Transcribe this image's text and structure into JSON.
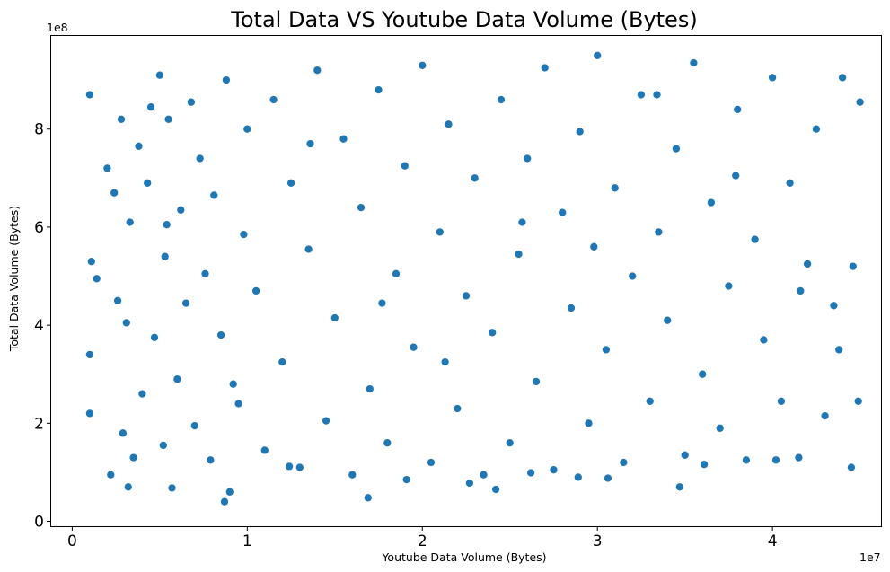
{
  "chart_data": {
    "type": "scatter",
    "title": "Total Data VS Youtube Data Volume (Bytes)",
    "xlabel": "Youtube Data Volume (Bytes)",
    "ylabel": "Total Data Volume (Bytes)",
    "x_offset_label": "1e7",
    "y_offset_label": "1e8",
    "xlim": [
      -1200000,
      46200000
    ],
    "ylim": [
      -10000000,
      990000000
    ],
    "x_ticks": [
      0,
      10000000,
      20000000,
      30000000,
      40000000
    ],
    "x_tick_labels": [
      "0",
      "1",
      "2",
      "3",
      "4"
    ],
    "y_ticks": [
      0,
      200000000,
      400000000,
      600000000,
      800000000
    ],
    "y_tick_labels": [
      "0",
      "2",
      "4",
      "6",
      "8"
    ],
    "grid": false,
    "legend": "none",
    "color": "#1f77b4",
    "series": [
      {
        "x": [
          1000000,
          1100000,
          1000000,
          1000000,
          1400000,
          2000000,
          2200000,
          2600000,
          2800000,
          2900000,
          3100000,
          3200000,
          3300000,
          3500000,
          3800000,
          4000000,
          4300000,
          4500000,
          4700000,
          5000000,
          5200000,
          5300000,
          5500000,
          5700000,
          6000000,
          6200000,
          6500000,
          6800000,
          7000000,
          7300000,
          7600000,
          7900000,
          8100000,
          8500000,
          8800000,
          9000000,
          9500000,
          9800000,
          10000000,
          10500000,
          11000000,
          11500000,
          12000000,
          12500000,
          13000000,
          13500000,
          14000000,
          14500000,
          15000000,
          15500000,
          16000000,
          16500000,
          17000000,
          17500000,
          18000000,
          18500000,
          19000000,
          19500000,
          20000000,
          20500000,
          21000000,
          21500000,
          22000000,
          22500000,
          23000000,
          23500000,
          24000000,
          24500000,
          25000000,
          25500000,
          26000000,
          26500000,
          27000000,
          27500000,
          28000000,
          28500000,
          29000000,
          29500000,
          30000000,
          30500000,
          31000000,
          31500000,
          32000000,
          32500000,
          33000000,
          33500000,
          34000000,
          34500000,
          35000000,
          35500000,
          36000000,
          36500000,
          37000000,
          37500000,
          38000000,
          38500000,
          39000000,
          39500000,
          40000000,
          40500000,
          41000000,
          41500000,
          42000000,
          42500000,
          43000000,
          43500000,
          44000000,
          44500000,
          45000000,
          8700000,
          16900000,
          24200000,
          28900000,
          34700000,
          12400000,
          19100000,
          22700000,
          26200000,
          30600000,
          36100000,
          40200000,
          43800000,
          44600000,
          44900000,
          2400000,
          5400000,
          9200000,
          13600000,
          17700000,
          21300000,
          25700000,
          29800000,
          33400000,
          37900000,
          41600000
        ],
        "y": [
          870000000,
          530000000,
          340000000,
          220000000,
          495000000,
          720000000,
          95000000,
          450000000,
          820000000,
          180000000,
          405000000,
          70000000,
          610000000,
          130000000,
          765000000,
          260000000,
          690000000,
          845000000,
          375000000,
          910000000,
          155000000,
          540000000,
          820000000,
          68000000,
          290000000,
          635000000,
          445000000,
          855000000,
          195000000,
          740000000,
          505000000,
          125000000,
          665000000,
          380000000,
          900000000,
          60000000,
          240000000,
          585000000,
          800000000,
          470000000,
          145000000,
          860000000,
          325000000,
          690000000,
          110000000,
          555000000,
          920000000,
          205000000,
          415000000,
          780000000,
          95000000,
          640000000,
          270000000,
          880000000,
          160000000,
          505000000,
          725000000,
          355000000,
          930000000,
          120000000,
          590000000,
          810000000,
          230000000,
          460000000,
          700000000,
          95000000,
          385000000,
          860000000,
          160000000,
          545000000,
          740000000,
          285000000,
          925000000,
          105000000,
          630000000,
          435000000,
          795000000,
          200000000,
          950000000,
          350000000,
          680000000,
          120000000,
          500000000,
          870000000,
          245000000,
          590000000,
          410000000,
          760000000,
          135000000,
          935000000,
          300000000,
          650000000,
          190000000,
          480000000,
          840000000,
          125000000,
          575000000,
          370000000,
          905000000,
          245000000,
          690000000,
          130000000,
          525000000,
          800000000,
          215000000,
          440000000,
          905000000,
          110000000,
          855000000,
          40000000,
          48000000,
          65000000,
          90000000,
          70000000,
          112000000,
          85000000,
          78000000,
          99000000,
          88000000,
          116000000,
          125000000,
          350000000,
          520000000,
          245000000,
          670000000,
          605000000,
          280000000,
          770000000,
          445000000,
          325000000,
          610000000,
          560000000,
          870000000,
          705000000,
          470000000
        ]
      }
    ]
  }
}
